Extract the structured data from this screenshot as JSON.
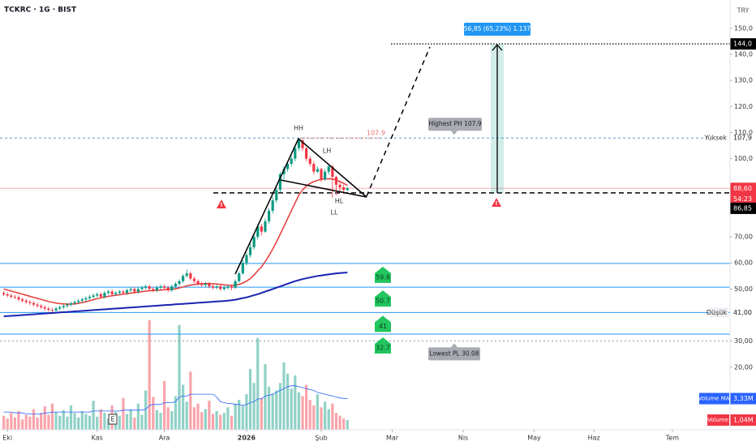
{
  "chart_data": {
    "type": "candlestick",
    "title": "TCKRC · 1G · BIST",
    "currency": "TRY",
    "up_color": "#089981",
    "down_color": "#f23645",
    "xlim": [
      -1,
      194
    ],
    "xticks": [
      {
        "value": 1,
        "label": "Eki"
      },
      {
        "value": 25,
        "label": "Kas"
      },
      {
        "value": 43,
        "label": "Ara"
      },
      {
        "value": 65,
        "label": "2026"
      },
      {
        "value": 85,
        "label": "Şub"
      },
      {
        "value": 104,
        "label": "Mar"
      },
      {
        "value": 123,
        "label": "Nis"
      },
      {
        "value": 142,
        "label": "May"
      },
      {
        "value": 158,
        "label": "Haz"
      },
      {
        "value": 179,
        "label": "Tem"
      }
    ],
    "ylim": [
      -4,
      154
    ],
    "yticks": [
      {
        "value": 150,
        "label": "150,0"
      },
      {
        "value": 140,
        "label": "140,0"
      },
      {
        "value": 130,
        "label": "130,0"
      },
      {
        "value": 120,
        "label": "120,0"
      },
      {
        "value": 110,
        "label": "110,0"
      },
      {
        "value": 100,
        "label": "100,0"
      },
      {
        "value": 70,
        "label": "70,00"
      },
      {
        "value": 60,
        "label": "60,00"
      },
      {
        "value": 50,
        "label": "50,00"
      },
      {
        "value": 30,
        "label": "30,00"
      },
      {
        "value": 20,
        "label": "20,00"
      }
    ],
    "y2lim": [
      0,
      44
    ],
    "open": [
      48.5,
      48,
      47.5,
      47,
      46.8,
      46,
      45.5,
      45,
      44.6,
      44,
      43.5,
      43,
      42.5,
      42,
      41.8,
      42.5,
      43,
      43.5,
      44,
      44.5,
      45,
      45.5,
      46,
      46.5,
      47,
      47.5,
      48,
      47,
      48.5,
      49,
      48,
      48.5,
      49,
      48.5,
      49.5,
      50,
      49,
      50,
      50.5,
      51,
      50,
      49.5,
      50.5,
      51,
      50.5,
      49.5,
      51,
      52,
      53,
      55,
      56,
      54,
      53,
      52,
      51.5,
      52,
      51,
      50.5,
      51,
      50,
      50.5,
      51,
      50.5,
      53,
      56,
      60,
      63,
      66,
      70,
      74,
      72,
      76,
      80,
      84,
      88,
      94,
      96,
      98,
      100,
      104,
      107,
      104,
      100,
      98,
      95,
      96,
      92,
      95,
      97,
      93,
      90,
      89,
      88
    ],
    "high": [
      49.2,
      48.7,
      48.2,
      47.7,
      47.5,
      46.7,
      46.2,
      45.7,
      45.3,
      44.7,
      44.2,
      43.7,
      43.2,
      42.7,
      43.2,
      43.7,
      44.2,
      44.7,
      45.2,
      45.7,
      46.2,
      46.7,
      47.2,
      47.7,
      48.2,
      48.7,
      48.7,
      49.2,
      49.7,
      49.7,
      49.2,
      49.7,
      49.7,
      50.2,
      50.7,
      50.7,
      50.7,
      51.2,
      51.7,
      51.7,
      50.7,
      51.2,
      51.7,
      51.7,
      51.2,
      51.7,
      52.7,
      53.7,
      55.7,
      57.5,
      56.7,
      54.7,
      53.7,
      52.7,
      52.7,
      52.7,
      51.7,
      51.7,
      51.7,
      51.2,
      51.7,
      51.7,
      53.7,
      56.8,
      61,
      64,
      67.5,
      71,
      75,
      75,
      77,
      81,
      85.5,
      89,
      95,
      97,
      99,
      101,
      105,
      107.9,
      107.5,
      104.5,
      101,
      99,
      97,
      96.5,
      96,
      98,
      97.5,
      93.5,
      91,
      90,
      89.3
    ],
    "low": [
      47.3,
      46.8,
      46.3,
      46.1,
      45.3,
      44.8,
      44.3,
      43.9,
      43.3,
      42.8,
      42.3,
      41.8,
      41.3,
      41.1,
      41.1,
      41.8,
      42.3,
      42.8,
      43.3,
      43.8,
      44.3,
      44.8,
      45.3,
      45.8,
      46.3,
      46.8,
      46.3,
      46.3,
      47.8,
      47.3,
      47.3,
      47.8,
      47.8,
      47.8,
      48.8,
      48.3,
      48.3,
      49.3,
      49.8,
      49.3,
      48.8,
      48.8,
      49.8,
      49.8,
      48.8,
      48.8,
      50.3,
      51.3,
      52.3,
      54.3,
      53.3,
      52.3,
      51.3,
      50.8,
      50.8,
      50.3,
      49.8,
      49.8,
      49.3,
      49.3,
      49.8,
      49.5,
      50,
      52.5,
      55.5,
      59,
      62,
      65,
      69,
      70.5,
      71.5,
      75,
      79,
      83,
      87,
      92,
      95,
      97,
      99,
      103,
      103,
      99,
      97,
      94,
      94.5,
      91,
      91.5,
      94,
      85,
      86,
      87,
      86.5,
      87.5
    ],
    "close": [
      48,
      47.5,
      47,
      46.8,
      46,
      45.5,
      45,
      44.6,
      44,
      43.5,
      43,
      42.5,
      42,
      41.8,
      42.5,
      43,
      43.5,
      44,
      44.5,
      45,
      45.5,
      46,
      46.5,
      47,
      47.5,
      48,
      47,
      48.5,
      49,
      48,
      48.5,
      49,
      48.5,
      49.5,
      50,
      49,
      50,
      50.5,
      51,
      50,
      49.5,
      50.5,
      51,
      50.5,
      49.5,
      51,
      52,
      53,
      55,
      56,
      54,
      53,
      52,
      51.5,
      52,
      51,
      50.5,
      51,
      50,
      50.5,
      51,
      50.5,
      53,
      56,
      60,
      63,
      66,
      70,
      74,
      72,
      76,
      80,
      84,
      88,
      94,
      96,
      98,
      100,
      104,
      107,
      104,
      100,
      98,
      95,
      96,
      92,
      95,
      97,
      93,
      90,
      89,
      88,
      88.6
    ],
    "ma_fast": {
      "color": "#e53935",
      "values": [
        50,
        49.6,
        49.2,
        48.8,
        48.4,
        48,
        47.6,
        47.2,
        46.8,
        46.4,
        46,
        45.6,
        45.2,
        44.9,
        44.6,
        44.4,
        44.3,
        44.2,
        44.2,
        44.3,
        44.5,
        44.8,
        45.1,
        45.5,
        45.9,
        46.3,
        46.6,
        46.9,
        47.2,
        47.4,
        47.6,
        47.8,
        48,
        48.2,
        48.4,
        48.6,
        48.8,
        49,
        49.2,
        49.3,
        49.4,
        49.5,
        49.6,
        49.7,
        49.8,
        49.9,
        50.1,
        50.4,
        50.8,
        51.2,
        51.5,
        51.7,
        51.9,
        52,
        52.1,
        52.1,
        52,
        51.9,
        51.8,
        51.6,
        51.5,
        51.4,
        51.5,
        51.8,
        52.3,
        53,
        54,
        55.3,
        57,
        58.5,
        60.5,
        62.8,
        65.3,
        68,
        71,
        74,
        77,
        80,
        83,
        86,
        88,
        89.5,
        90.5,
        91.2,
        91.7,
        92,
        92.2,
        92.3,
        92.2,
        91.8,
        91.2,
        90.5,
        89.8
      ]
    },
    "ma_slow": {
      "color": "#1a23b0",
      "values": [
        39.5,
        39.6,
        39.7,
        39.8,
        39.9,
        40,
        40.1,
        40.2,
        40.3,
        40.4,
        40.5,
        40.6,
        40.7,
        40.8,
        40.9,
        41,
        41.1,
        41.2,
        41.3,
        41.4,
        41.5,
        41.6,
        41.7,
        41.8,
        41.9,
        42,
        42.1,
        42.2,
        42.3,
        42.4,
        42.5,
        42.6,
        42.7,
        42.8,
        42.9,
        43,
        43.1,
        43.2,
        43.3,
        43.4,
        43.5,
        43.6,
        43.7,
        43.8,
        43.9,
        44,
        44.1,
        44.2,
        44.3,
        44.4,
        44.5,
        44.6,
        44.7,
        44.8,
        44.9,
        45,
        45.1,
        45.2,
        45.3,
        45.4,
        45.5,
        45.7,
        45.9,
        46.2,
        46.5,
        46.8,
        47.2,
        47.6,
        48,
        48.5,
        49,
        49.5,
        50,
        50.5,
        51,
        51.5,
        52,
        52.5,
        53,
        53.4,
        53.8,
        54.1,
        54.4,
        54.7,
        55,
        55.2,
        55.4,
        55.6,
        55.8,
        56,
        56.1,
        56.2,
        56.3
      ]
    },
    "volume": {
      "name": "Volume",
      "axis": "y2",
      "color": "#f23645",
      "values": [
        1.5,
        1.2,
        1.8,
        1.3,
        2.0,
        1.1,
        1.6,
        1.4,
        2.2,
        1.3,
        1.8,
        2.5,
        1.6,
        2.8,
        1.9,
        1.5,
        2.1,
        1.4,
        2.6,
        1.8,
        1.3,
        2.0,
        1.7,
        1.5,
        3.1,
        1.4,
        2.2,
        1.8,
        1.2,
        2.6,
        1.9,
        1.5,
        3.4,
        1.7,
        2.2,
        1.3,
        2.8,
        1.6,
        4.2,
        11.7,
        3.5,
        2.1,
        1.8,
        5.2,
        2.4,
        2.0,
        3.6,
        11.2,
        4.8,
        3.0,
        6.2,
        2.4,
        2.8,
        1.9,
        2.2,
        3.1,
        1.7,
        2.0,
        1.6,
        1.8,
        2.4,
        1.5,
        2.8,
        3.2,
        2.6,
        3.8,
        6.5,
        5.0,
        9.8,
        3.4,
        7.0,
        4.6,
        3.8,
        4.2,
        5.0,
        7.2,
        6.0,
        4.4,
        5.8,
        4.0,
        3.6,
        4.8,
        3.2,
        2.6,
        3.8,
        2.4,
        3.0,
        2.2,
        2.8,
        1.8,
        1.5,
        1.2,
        1.04
      ],
      "value_label": "1,04M"
    },
    "volume_ma": {
      "name": "Volume MA",
      "axis": "y2",
      "color": "#2962ff",
      "values": [
        1.9,
        1.9,
        1.9,
        1.8,
        1.8,
        1.8,
        1.7,
        1.7,
        1.7,
        1.7,
        1.7,
        1.8,
        1.8,
        1.9,
        1.9,
        1.9,
        1.9,
        1.9,
        1.9,
        1.9,
        1.9,
        1.9,
        1.9,
        1.9,
        2.0,
        2.0,
        2.0,
        2.0,
        2.0,
        2.0,
        2.0,
        2.0,
        2.1,
        2.1,
        2.1,
        2.1,
        2.1,
        2.1,
        2.2,
        2.6,
        2.7,
        2.7,
        2.7,
        2.9,
        2.9,
        2.9,
        3.0,
        3.5,
        3.6,
        3.6,
        3.8,
        3.8,
        3.8,
        3.8,
        3.8,
        3.8,
        3.8,
        3.5,
        3.0,
        2.9,
        2.8,
        2.8,
        2.7,
        2.7,
        2.6,
        2.7,
        2.9,
        3.0,
        3.3,
        3.3,
        3.6,
        3.7,
        3.8,
        4.0,
        4.2,
        4.4,
        4.6,
        4.7,
        4.7,
        4.6,
        4.5,
        4.4,
        4.3,
        4.2,
        4.0,
        3.9,
        3.8,
        3.7,
        3.6,
        3.5,
        3.4,
        3.35,
        3.33
      ],
      "value_label": "3,33M"
    },
    "levels": [
      59.8,
      50.7,
      41,
      32.7
    ],
    "high_level": {
      "name": "Yüksek",
      "value": 107.9,
      "label": "107,9"
    },
    "low_level": {
      "name": "Düşük",
      "value": 41,
      "label": "41,00"
    },
    "last_price": {
      "value": 88.6,
      "label": "88,60"
    },
    "countdown": "54:23",
    "entry": {
      "value": 86.85,
      "label": "86,85"
    },
    "target": {
      "value": 144,
      "label": "144,0"
    },
    "measure": "56,85 (65,23%) 1.137",
    "peak_value": 107.9,
    "highest_pivot": {
      "label": "Highest PH 107.9",
      "value": 107.9
    },
    "lowest_pivot": {
      "label": "Lowest PL 30.08",
      "value": 30.08
    },
    "pattern_labels": [
      "HH",
      "LH",
      "HL",
      "LL"
    ],
    "earnings_marker": "E"
  }
}
